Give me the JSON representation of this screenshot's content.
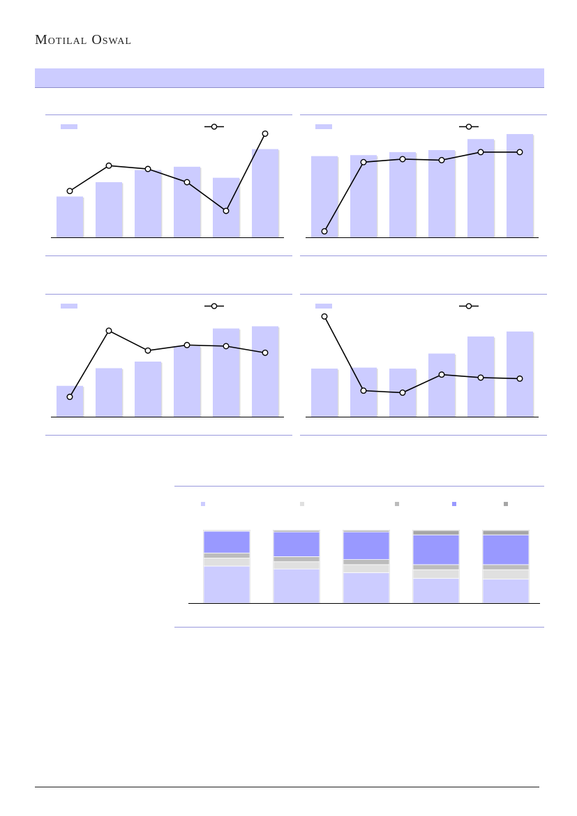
{
  "header": {
    "logo_text": "Motilal Oswal"
  },
  "colors": {
    "section_band": "#ccccff",
    "bar": "#ccccff",
    "line": "#000000",
    "rule": "#9999dd",
    "stack": [
      "#ccccff",
      "#e0e0e0",
      "#bcbcbc",
      "#9999ff",
      "#a6a6a6"
    ]
  },
  "chart_data": [
    {
      "type": "bar",
      "bar_values": [
        37,
        50,
        61,
        64,
        54,
        80
      ],
      "line_values": [
        42,
        65,
        62,
        50,
        24,
        94
      ],
      "ylim": [
        0,
        100
      ],
      "legend": "top",
      "grid": false
    },
    {
      "type": "bar",
      "bar_values": [
        81,
        82,
        85,
        87,
        98,
        103
      ],
      "line_values": [
        6,
        75,
        78,
        77,
        85,
        85
      ],
      "ylim": [
        0,
        110
      ],
      "legend": "top",
      "grid": false
    },
    {
      "type": "bar",
      "bar_values": [
        28,
        44,
        50,
        64,
        80,
        82
      ],
      "line_values": [
        18,
        78,
        60,
        65,
        64,
        58
      ],
      "ylim": [
        0,
        100
      ],
      "legend": "top",
      "grid": false
    },
    {
      "type": "bar",
      "bar_values": [
        48,
        49,
        48,
        63,
        80,
        85
      ],
      "line_values": [
        100,
        26,
        24,
        42,
        39,
        38
      ],
      "ylim": [
        0,
        110
      ],
      "legend": "top",
      "grid": false
    },
    {
      "type": "bar",
      "stacked": true,
      "percent": true,
      "legend": "top",
      "series": [
        {
          "values": [
            51,
            47,
            42,
            34,
            33
          ]
        },
        {
          "values": [
            11,
            10,
            11,
            12,
            13
          ]
        },
        {
          "values": [
            7,
            7,
            7,
            7,
            7
          ]
        },
        {
          "values": [
            30,
            34,
            38,
            41,
            41
          ]
        },
        {
          "values": [
            1,
            2,
            2,
            6,
            6
          ]
        }
      ]
    }
  ]
}
